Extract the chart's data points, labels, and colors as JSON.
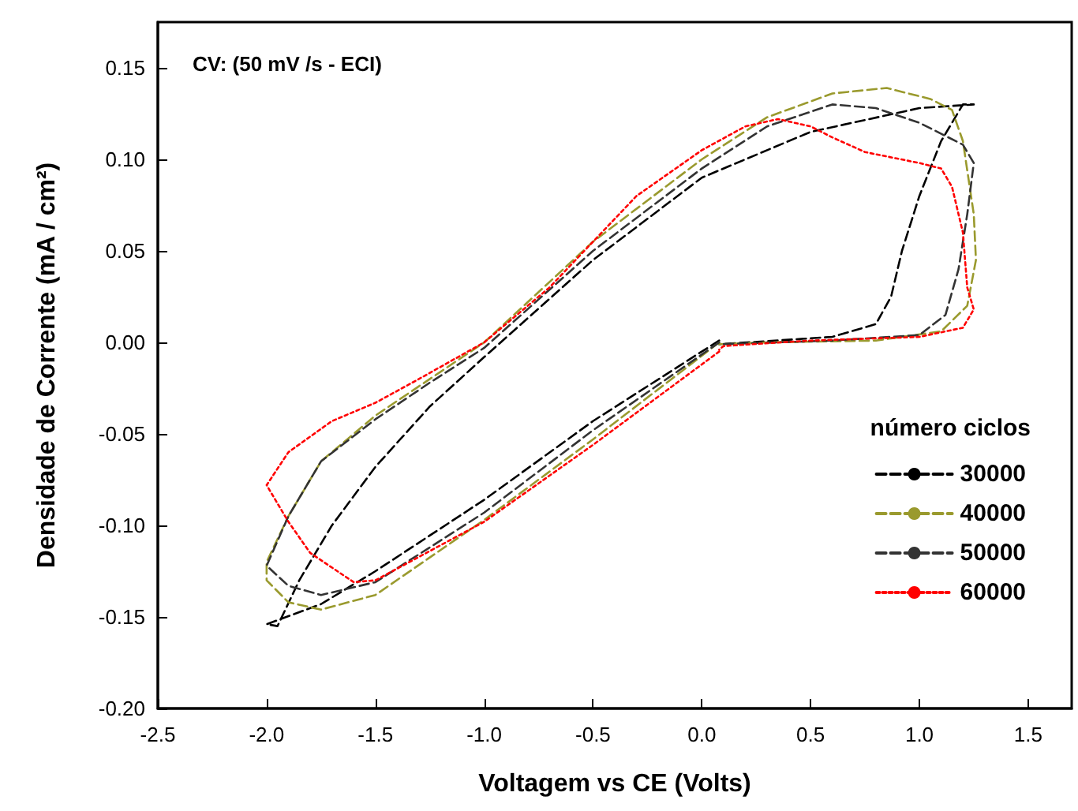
{
  "chart_data": {
    "type": "line",
    "xlabel": "Voltagem vs CE (Volts)",
    "ylabel": "Densidade de Corrente (mA / cm²)",
    "legend_title": "número ciclos",
    "annotations": [
      "CV: (50 mV /s - ECI)"
    ],
    "xlim": [
      -2.5,
      1.7
    ],
    "ylim": [
      -0.2,
      0.175
    ],
    "xticks": [
      -2.5,
      {
        "value": -2,
        "label": "-2.0"
      },
      -1.5,
      {
        "value": -1,
        "label": "-1.0"
      },
      -0.5,
      {
        "value": 0,
        "label": "0.0"
      },
      0.5,
      {
        "value": 1,
        "label": "1.0"
      },
      1.5
    ],
    "yticks": [
      {
        "value": -0.2,
        "label": "-0.20"
      },
      -0.15,
      {
        "value": -0.1,
        "label": "-0.10"
      },
      -0.05,
      {
        "value": 0,
        "label": "0.00"
      },
      0.05,
      {
        "value": 0.1,
        "label": "0.10"
      },
      0.15
    ],
    "grid": false,
    "legend": "right",
    "marker": "none",
    "series": [
      {
        "name": "30000",
        "color": "#000000",
        "line_style": "dashed",
        "x": [
          0.08,
          0,
          -0.5,
          -1.0,
          -1.5,
          -1.75,
          -2.0,
          -1.95,
          -1.85,
          -1.7,
          -1.5,
          -1.25,
          -1.0,
          -0.5,
          0,
          0.5,
          1.0,
          1.25,
          1.2,
          1.1,
          1.0,
          0.92,
          0.87,
          0.8,
          0.6,
          0.08
        ],
        "values": [
          0.001,
          -0.005,
          -0.043,
          -0.086,
          -0.125,
          -0.143,
          -0.154,
          -0.155,
          -0.13,
          -0.1,
          -0.068,
          -0.035,
          -0.008,
          0.045,
          0.09,
          0.115,
          0.128,
          0.13,
          0.13,
          0.11,
          0.08,
          0.05,
          0.025,
          0.01,
          0.003,
          -0.001
        ]
      },
      {
        "name": "40000",
        "color": "#9a9a2e",
        "line_style": "dashed",
        "x": [
          0.08,
          -0.5,
          -1.0,
          -1.5,
          -1.75,
          -1.9,
          -2.0,
          -2.0,
          -1.9,
          -1.75,
          -1.5,
          -1.25,
          -1.0,
          -0.5,
          0,
          0.3,
          0.6,
          0.85,
          1.05,
          1.15,
          1.2,
          1.25,
          1.26,
          1.22,
          1.1,
          0.8,
          0.3,
          0.08
        ],
        "values": [
          0,
          -0.053,
          -0.097,
          -0.138,
          -0.146,
          -0.142,
          -0.13,
          -0.12,
          -0.095,
          -0.065,
          -0.04,
          -0.02,
          0,
          0.055,
          0.1,
          0.123,
          0.136,
          0.139,
          0.133,
          0.127,
          0.11,
          0.07,
          0.045,
          0.02,
          0.006,
          0.001,
          0,
          -0.001
        ]
      },
      {
        "name": "50000",
        "color": "#333333",
        "line_style": "dashed",
        "x": [
          0.08,
          -0.5,
          -1.0,
          -1.5,
          -1.75,
          -1.9,
          -2.0,
          -1.9,
          -1.75,
          -1.5,
          -1.25,
          -1.0,
          -0.5,
          0,
          0.3,
          0.6,
          0.8,
          1.0,
          1.2,
          1.25,
          1.22,
          1.18,
          1.12,
          1.0,
          0.6,
          0.08
        ],
        "values": [
          0,
          -0.048,
          -0.093,
          -0.131,
          -0.138,
          -0.133,
          -0.122,
          -0.095,
          -0.065,
          -0.042,
          -0.022,
          -0.003,
          0.05,
          0.095,
          0.118,
          0.13,
          0.128,
          0.12,
          0.108,
          0.098,
          0.07,
          0.04,
          0.015,
          0.004,
          0.001,
          -0.001
        ]
      },
      {
        "name": "60000",
        "color": "#ff0000",
        "line_style": "dotted",
        "x": [
          0.08,
          -0.5,
          -1.0,
          -1.5,
          -1.6,
          -1.8,
          -1.9,
          -2.0,
          -1.9,
          -1.7,
          -1.5,
          -1.3,
          -1.0,
          -0.7,
          -0.5,
          -0.3,
          0,
          0.2,
          0.35,
          0.5,
          0.6,
          0.75,
          1.0,
          1.1,
          1.15,
          1.2,
          1.22,
          1.25,
          1.2,
          1.0,
          0.5,
          0.1,
          0.08
        ],
        "values": [
          -0.005,
          -0.056,
          -0.098,
          -0.13,
          -0.131,
          -0.115,
          -0.098,
          -0.078,
          -0.06,
          -0.043,
          -0.033,
          -0.02,
          0,
          0.03,
          0.055,
          0.08,
          0.105,
          0.118,
          0.122,
          0.118,
          0.112,
          0.104,
          0.098,
          0.095,
          0.085,
          0.06,
          0.03,
          0.018,
          0.008,
          0.003,
          0.001,
          -0.002,
          -0.004
        ]
      }
    ]
  }
}
